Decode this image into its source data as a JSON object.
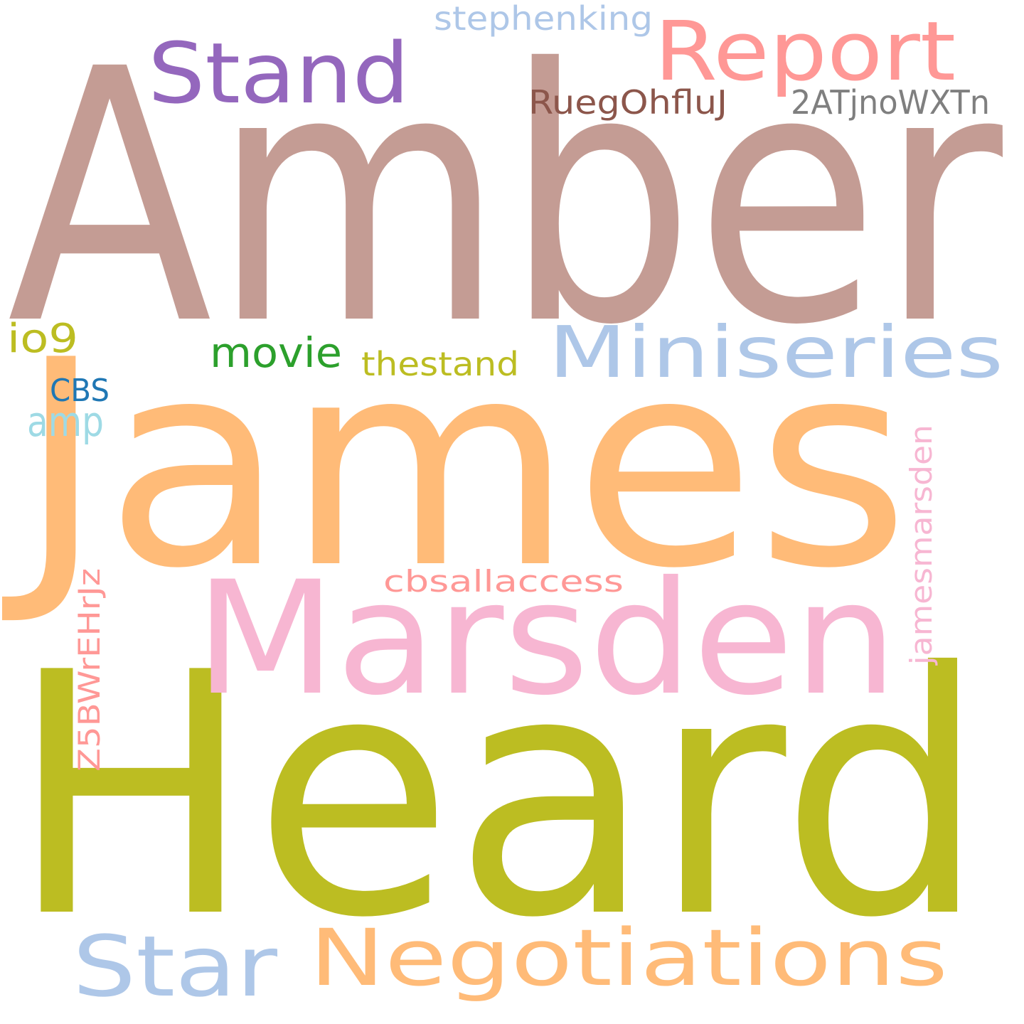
{
  "word_cloud": {
    "words": [
      {
        "text": "Amber",
        "color": "#c49c94"
      },
      {
        "text": "James",
        "color": "#ffbb78"
      },
      {
        "text": "Heard",
        "color": "#bcbd22"
      },
      {
        "text": "Marsden",
        "color": "#f7b6d2"
      },
      {
        "text": "Report",
        "color": "#ff9896"
      },
      {
        "text": "Stand",
        "color": "#9467bd"
      },
      {
        "text": "Miniseries",
        "color": "#aec7e8"
      },
      {
        "text": "Negotiations",
        "color": "#ffbb78"
      },
      {
        "text": "Star",
        "color": "#aec7e8"
      },
      {
        "text": "stephenking",
        "color": "#aec7e8"
      },
      {
        "text": "RuegOhfluJ",
        "color": "#8c564b"
      },
      {
        "text": "2ATjnoWXTn",
        "color": "#7f7f7f"
      },
      {
        "text": "io9",
        "color": "#bcbd22"
      },
      {
        "text": "movie",
        "color": "#2ca02c"
      },
      {
        "text": "thestand",
        "color": "#bcbd22"
      },
      {
        "text": "CBS",
        "color": "#1f77b4"
      },
      {
        "text": "amp",
        "color": "#9edae5"
      },
      {
        "text": "cbsallaccess",
        "color": "#ff9896"
      },
      {
        "text": "jamesmarsden",
        "color": "#f7b6d2"
      },
      {
        "text": "Z5BWrEHrJz",
        "color": "#ff9896"
      }
    ]
  }
}
